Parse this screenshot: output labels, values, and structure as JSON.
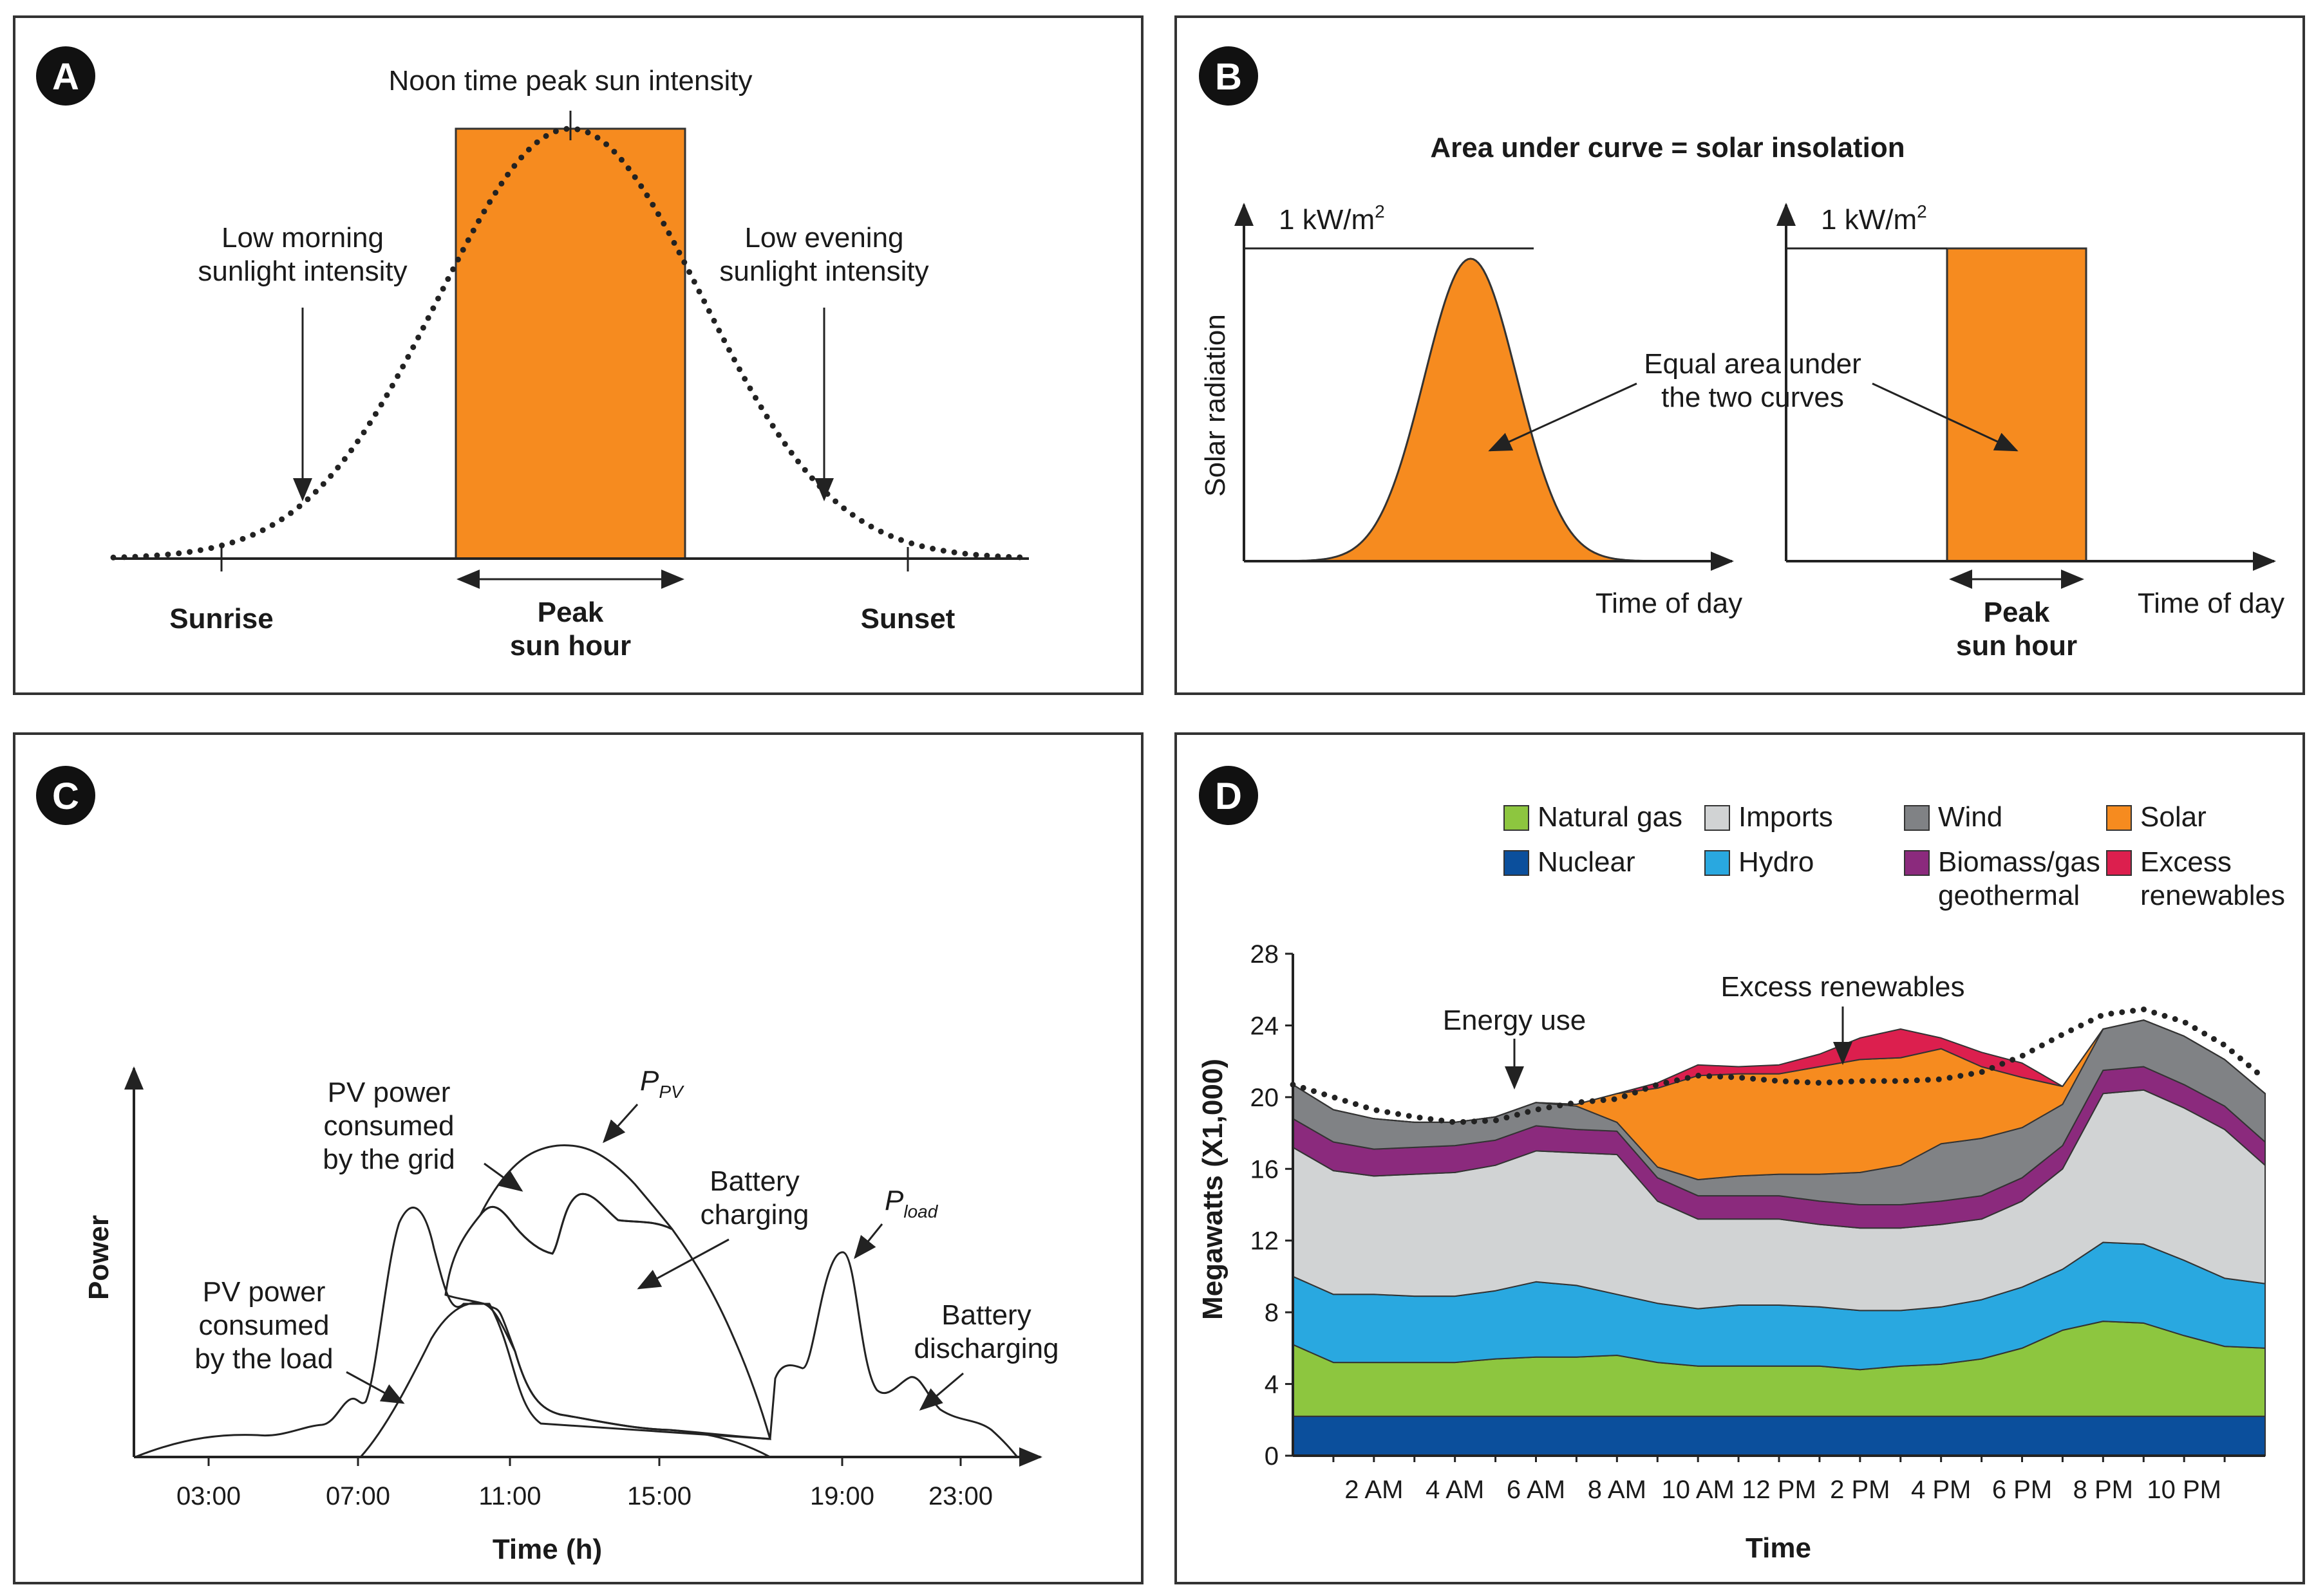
{
  "panels": {
    "a": {
      "badge": "A",
      "top_label": "Noon time peak sun intensity",
      "left_label": [
        "Low morning",
        "sunlight intensity"
      ],
      "right_label": [
        "Low evening",
        "sunlight intensity"
      ],
      "sunrise": "Sunrise",
      "sunset": "Sunset",
      "peak": [
        "Peak",
        "sun hour"
      ]
    },
    "b": {
      "badge": "B",
      "title": "Area under curve = solar insolation",
      "unit_base": "1 kW/m",
      "unit_sup": "2",
      "ylabel": "Solar radiation",
      "xlabel": "Time of day",
      "middle_label": [
        "Equal area under",
        "the two curves"
      ],
      "peak": [
        "Peak",
        "sun hour"
      ]
    },
    "c": {
      "badge": "C",
      "ylabel": "Power",
      "xlabel": "Time (h)",
      "ticks": [
        "03:00",
        "07:00",
        "11:00",
        "15:00",
        "19:00",
        "23:00"
      ],
      "grid_label": [
        "PV power",
        "consumed",
        "by the grid"
      ],
      "load_label": [
        "PV power",
        "consumed",
        "by the load"
      ],
      "battery_charging": [
        "Battery",
        "charging"
      ],
      "battery_discharging": [
        "Battery",
        "discharging"
      ],
      "ppv_base": "P",
      "ppv_sub": "PV",
      "pload_base": "P",
      "pload_sub": "load"
    },
    "d": {
      "badge": "D",
      "ylabel": "Megawatts (X1,000)",
      "xlabel": "Time",
      "energy_use_label": "Energy use",
      "excess_label": "Excess renewables"
    }
  },
  "colors": {
    "orange": "#f68b1f",
    "natural_gas": "#8dc63f",
    "nuclear": "#0b4f9c",
    "imports": "#d1d3d4",
    "hydro": "#29a8e0",
    "wind": "#808285",
    "biomass": "#8b2a7d",
    "solar": "#f68b1f",
    "excess": "#dc1f4e",
    "dark_green": "#1f8a3b",
    "light_green": "#8dc63f",
    "light_blue": "#29a8e0",
    "dark_blue": "#0b4f9c",
    "badge": "#111111"
  },
  "chart_data": {
    "type": "area",
    "title": "",
    "xlabel": "Time",
    "ylabel": "Megawatts (X1,000)",
    "ylim": [
      0,
      28
    ],
    "yticks": [
      "0",
      "4",
      "8",
      "12",
      "16",
      "20",
      "24",
      "28"
    ],
    "xlim": [
      0,
      24
    ],
    "xticks": [
      {
        "x": 2,
        "label": "2 AM"
      },
      {
        "x": 4,
        "label": "4 AM"
      },
      {
        "x": 6,
        "label": "6 AM"
      },
      {
        "x": 8,
        "label": "8 AM"
      },
      {
        "x": 10,
        "label": "10 AM"
      },
      {
        "x": 12,
        "label": "12 PM"
      },
      {
        "x": 14,
        "label": "2 PM"
      },
      {
        "x": 16,
        "label": "4 PM"
      },
      {
        "x": 18,
        "label": "6 PM"
      },
      {
        "x": 20,
        "label": "8 PM"
      },
      {
        "x": 22,
        "label": "10 PM"
      }
    ],
    "x": [
      0,
      1,
      2,
      3,
      4,
      5,
      6,
      7,
      8,
      9,
      10,
      11,
      12,
      13,
      14,
      15,
      16,
      17,
      18,
      19,
      20,
      21,
      22,
      23,
      24
    ],
    "series": [
      {
        "name": "Nuclear",
        "color": "#0b4f9c",
        "values": [
          2.2,
          2.2,
          2.2,
          2.2,
          2.2,
          2.2,
          2.2,
          2.2,
          2.2,
          2.2,
          2.2,
          2.2,
          2.2,
          2.2,
          2.2,
          2.2,
          2.2,
          2.2,
          2.2,
          2.2,
          2.2,
          2.2,
          2.2,
          2.2,
          2.2
        ]
      },
      {
        "name": "Natural gas",
        "color": "#8dc63f",
        "values": [
          4.0,
          3.0,
          3.0,
          3.0,
          3.0,
          3.2,
          3.3,
          3.3,
          3.4,
          3.0,
          2.8,
          2.8,
          2.8,
          2.8,
          2.6,
          2.8,
          2.9,
          3.2,
          3.8,
          4.8,
          5.3,
          5.2,
          4.5,
          3.9,
          3.8
        ]
      },
      {
        "name": "Hydro",
        "color": "#29a8e0",
        "values": [
          3.8,
          3.8,
          3.8,
          3.7,
          3.7,
          3.8,
          4.2,
          4.0,
          3.4,
          3.3,
          3.2,
          3.4,
          3.4,
          3.3,
          3.3,
          3.1,
          3.2,
          3.3,
          3.4,
          3.4,
          4.4,
          4.4,
          4.2,
          3.8,
          3.6
        ]
      },
      {
        "name": "Imports",
        "color": "#d1d3d4",
        "values": [
          7.2,
          6.9,
          6.6,
          6.8,
          6.9,
          7.0,
          7.3,
          7.4,
          7.8,
          5.7,
          5.0,
          4.8,
          4.8,
          4.6,
          4.6,
          4.6,
          4.6,
          4.5,
          4.8,
          5.6,
          8.3,
          8.6,
          8.5,
          8.3,
          6.6
        ]
      },
      {
        "name": "Biomass/gas geothermal",
        "color": "#8b2a7d",
        "values": [
          1.6,
          1.6,
          1.5,
          1.5,
          1.5,
          1.4,
          1.4,
          1.3,
          1.3,
          1.3,
          1.3,
          1.3,
          1.3,
          1.3,
          1.3,
          1.3,
          1.3,
          1.3,
          1.3,
          1.3,
          1.3,
          1.3,
          1.3,
          1.3,
          1.3
        ]
      },
      {
        "name": "Wind",
        "color": "#808285",
        "values": [
          1.9,
          1.8,
          1.7,
          1.4,
          1.3,
          1.3,
          1.3,
          1.3,
          0.5,
          0.6,
          0.9,
          1.1,
          1.2,
          1.5,
          1.8,
          2.2,
          3.2,
          3.2,
          2.8,
          2.3,
          2.3,
          2.6,
          2.7,
          2.6,
          2.7
        ]
      },
      {
        "name": "Solar",
        "color": "#f68b1f",
        "values": [
          0,
          0,
          0,
          0,
          0,
          0,
          0,
          0.1,
          1.6,
          4.4,
          5.8,
          5.7,
          5.6,
          6.0,
          6.3,
          6.0,
          5.3,
          4.0,
          2.8,
          1.0,
          0,
          0,
          0,
          0,
          0
        ]
      },
      {
        "name": "Excess renewables",
        "color": "#dc1f4e",
        "values": [
          0,
          0,
          0,
          0,
          0,
          0,
          0,
          0,
          0,
          0.3,
          0.6,
          0.4,
          0.5,
          0.7,
          1.2,
          1.6,
          0.6,
          0.8,
          0.8,
          0,
          0,
          0,
          0,
          0,
          0
        ]
      }
    ],
    "energy_use": [
      20.7,
      20.0,
      19.3,
      18.9,
      18.6,
      18.7,
      19.3,
      19.7,
      19.9,
      20.7,
      21.2,
      21.1,
      20.9,
      20.8,
      20.9,
      20.9,
      21.0,
      21.4,
      22.3,
      23.5,
      24.6,
      24.9,
      24.2,
      22.9,
      21.0
    ],
    "legend": [
      {
        "label": "Natural gas",
        "color": "#8dc63f"
      },
      {
        "label": "Imports",
        "color": "#d1d3d4"
      },
      {
        "label": "Wind",
        "color": "#808285"
      },
      {
        "label": "Solar",
        "color": "#f68b1f"
      },
      {
        "label": "Nuclear",
        "color": "#0b4f9c"
      },
      {
        "label": "Hydro",
        "color": "#29a8e0"
      },
      {
        "label": "Biomass/gas",
        "label2": "geothermal",
        "color": "#8b2a7d"
      },
      {
        "label": "Excess",
        "label2": "renewables",
        "color": "#dc1f4e"
      }
    ]
  }
}
